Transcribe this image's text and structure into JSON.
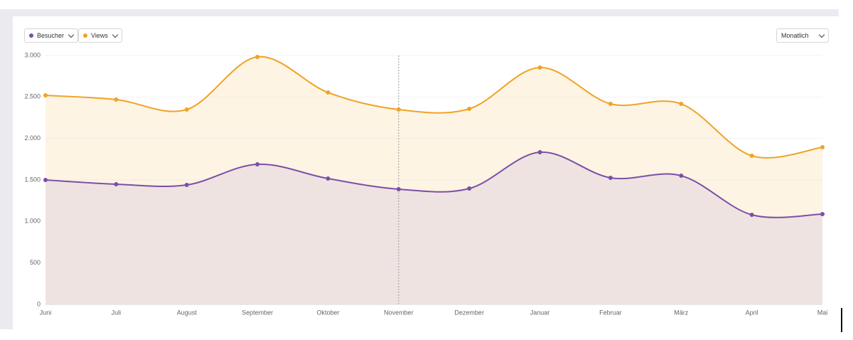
{
  "period_select": "Monatlich",
  "chart_data": {
    "type": "area",
    "categories": [
      "Juni",
      "Juli",
      "August",
      "September",
      "Oktober",
      "November",
      "Dezember",
      "Januar",
      "Februar",
      "März",
      "April",
      "Mai"
    ],
    "series": [
      {
        "name": "Besucher",
        "color": "#7b4fa8",
        "fill": "#efe3e1",
        "values": [
          1500,
          1449,
          1440,
          1689,
          1517,
          1389,
          1397,
          1834,
          1526,
          1551,
          1080,
          1089
        ]
      },
      {
        "name": "Views",
        "color": "#f0a326",
        "fill": "#fdf4e3",
        "values": [
          2520,
          2469,
          2349,
          2983,
          2554,
          2349,
          2357,
          2854,
          2417,
          2417,
          1791,
          1894
        ]
      }
    ],
    "ylim": [
      0,
      3000
    ],
    "yticks": [
      0,
      500,
      {
        "value": 1000,
        "label": "1.000"
      },
      {
        "value": 1500,
        "label": "1.500"
      },
      {
        "value": 2000,
        "label": "2.000"
      },
      {
        "value": 2500,
        "label": "2.500"
      },
      {
        "value": 3000,
        "label": "3.000"
      }
    ],
    "grid": true
  }
}
